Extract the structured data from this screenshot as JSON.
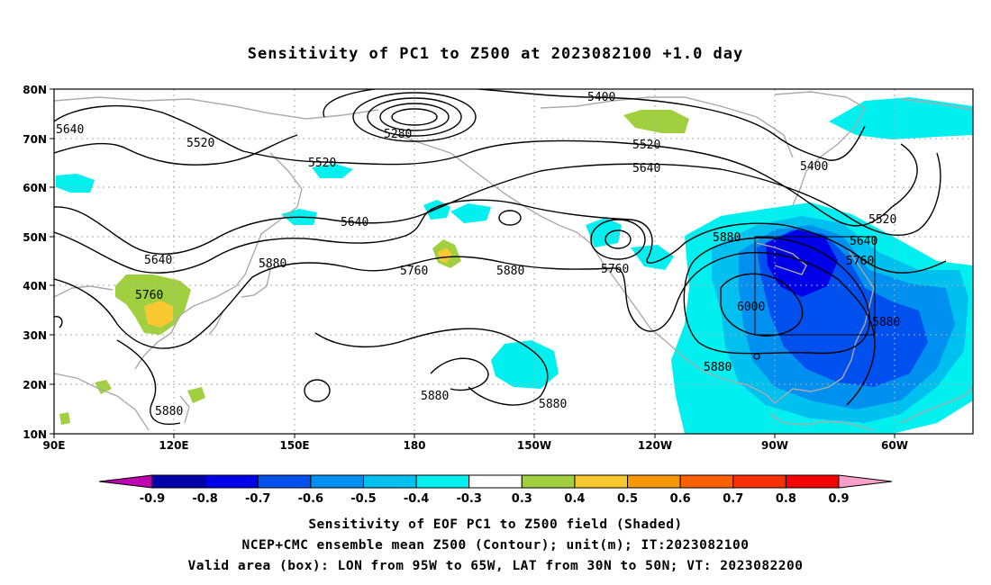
{
  "title": "Sensitivity of PC1 to Z500 at 2023082100 +1.0 day",
  "lat_labels": [
    "80N",
    "70N",
    "60N",
    "50N",
    "40N",
    "30N",
    "20N",
    "10N"
  ],
  "lon_labels": [
    "90E",
    "120E",
    "150E",
    "180",
    "150W",
    "120W",
    "90W",
    "60W"
  ],
  "contour_labels": {
    "c5640_a": "5640",
    "c5520_a": "5520",
    "c5520_b": "5520",
    "c5280": "5280",
    "c5400_a": "5400",
    "c5520_c": "5520",
    "c5640_b": "5640",
    "c5400_b": "5400",
    "c5520_d": "5520",
    "c5640_c": "5640",
    "c5640_d": "5640",
    "c5760_a": "5760",
    "c5880_a": "5880",
    "c5760_b": "5760",
    "c5880_b": "5880",
    "c5760_c": "5760",
    "c5880_c": "5880",
    "c5760_d": "5760",
    "c6000": "6000",
    "c5880_d": "5880",
    "c5880_e": "5880",
    "c5880_f": "5880",
    "c5880_g": "5880",
    "c5880_h": "5880"
  },
  "colorbar": {
    "labels": [
      "-0.9",
      "-0.8",
      "-0.7",
      "-0.6",
      "-0.5",
      "-0.4",
      "-0.3",
      "0.3",
      "0.4",
      "0.5",
      "0.6",
      "0.7",
      "0.8",
      "0.9"
    ],
    "colors": [
      "#0000a8",
      "#0000e8",
      "#0050f0",
      "#0090f0",
      "#00c0f0",
      "#00f0f0",
      "#ffffff",
      "#a0d040",
      "#f8c830",
      "#f89800",
      "#f86000",
      "#f83000",
      "#f80000"
    ],
    "low_extend_color": "#c000b0",
    "high_extend_color": "#f8a0c8"
  },
  "footer": {
    "line1": "Sensitivity of EOF PC1 to Z500 field (Shaded)",
    "line2": "NCEP+CMC ensemble mean Z500 (Contour); unit(m); IT:2023082100",
    "line3": "Valid area (box): LON from 95W to 65W, LAT from 30N to 50N; VT: 2023082200"
  }
}
